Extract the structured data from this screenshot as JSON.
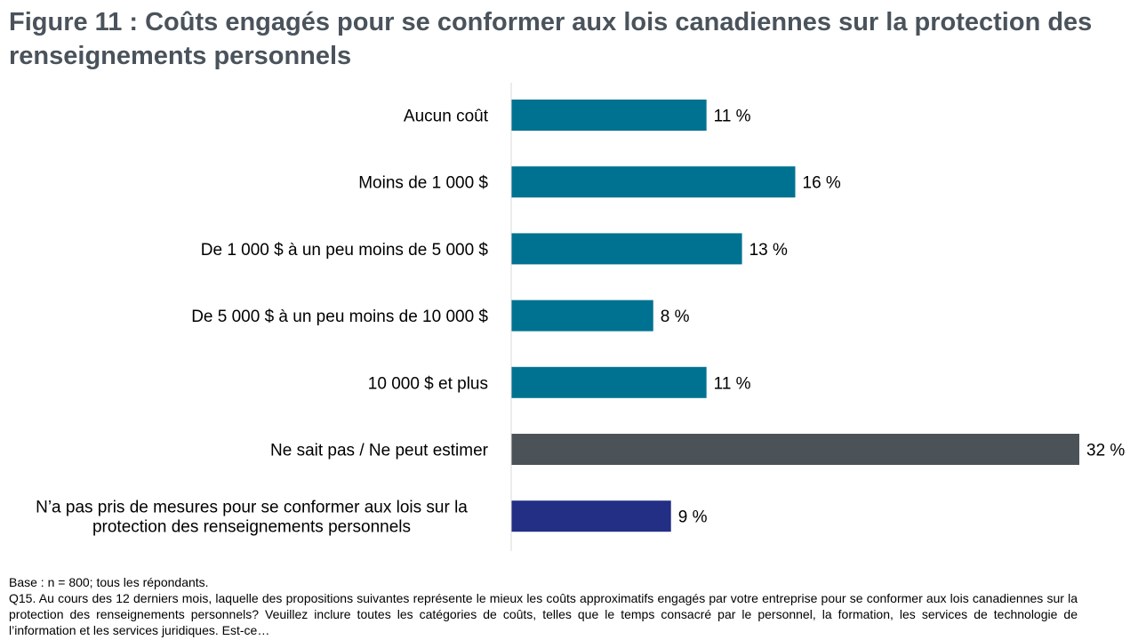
{
  "title": "Figure 11 : Coûts engagés pour se conformer aux lois canadiennes sur la protection des renseignements personnels",
  "chart_data": {
    "type": "bar",
    "orientation": "horizontal",
    "categories": [
      "Aucun coût",
      "Moins de 1 000 $",
      "De 1 000 $ à un peu moins de 5 000 $",
      "De 5 000 $ à un peu moins de 10 000 $",
      "10 000 $ et plus",
      "Ne sait pas / Ne peut estimer",
      "N’a pas pris de mesures pour se conformer aux lois sur la protection des renseignements personnels"
    ],
    "category_lines": [
      [
        "Aucun coût"
      ],
      [
        "Moins de 1 000 $"
      ],
      [
        "De 1 000 $ à un peu moins de 5 000 $"
      ],
      [
        "De 5 000 $ à un peu moins de 10 000 $"
      ],
      [
        "10 000 $ et plus"
      ],
      [
        "Ne sait pas / Ne peut estimer"
      ],
      [
        "N’a pas pris de mesures pour se conformer aux lois sur la",
        "protection des renseignements personnels"
      ]
    ],
    "values": [
      11,
      16,
      13,
      8,
      11,
      32,
      9
    ],
    "value_labels": [
      "11 %",
      "16 %",
      "13 %",
      "8 %",
      "11 %",
      "32 %",
      "9 %"
    ],
    "bar_colors": [
      "#007291",
      "#007291",
      "#007291",
      "#007291",
      "#007291",
      "#4b5359",
      "#232f84"
    ],
    "xlim": [
      0,
      32
    ],
    "grid": false,
    "legend": "none",
    "unit": "%"
  },
  "footnotes": {
    "base": "Base : n = 800; tous les répondants.",
    "question": "Q15. Au cours des 12 derniers mois, laquelle des propositions suivantes représente le mieux les coûts approximatifs engagés par votre entreprise pour se conformer aux lois canadiennes sur la protection des renseignements personnels? Veuillez inclure toutes les catégories de coûts, telles que le temps consacré par le personnel, la formation, les services de technologie de l’information et les services juridiques. Est-ce…"
  }
}
